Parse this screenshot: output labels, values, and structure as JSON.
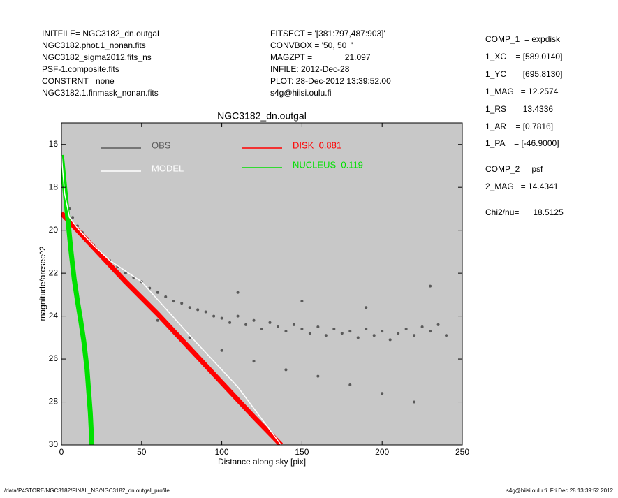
{
  "chart_data": {
    "type": "scatter",
    "title": "NGC3182_dn.outgal",
    "x_label": "Distance along sky [pix]",
    "y_label": "magnitude/arcsec^2",
    "xlim": [
      0,
      250
    ],
    "ylim": [
      30,
      15
    ],
    "xticks": [
      0,
      50,
      100,
      150,
      200,
      250
    ],
    "yticks": [
      16,
      18,
      20,
      22,
      24,
      26,
      28,
      30
    ],
    "grid": false,
    "background": "#c8c8c8",
    "header_left": [
      "INITFILE= NGC3182_dn.outgal",
      "NGC3182.phot.1_nonan.fits",
      "NGC3182_sigma2012.fits_ns",
      "PSF-1.composite.fits",
      "CONSTRNT= none",
      "NGC3182.1.finmask_nonan.fits"
    ],
    "header_center": [
      "FITSECT = '[381:797,487:903]'",
      "CONVBOX = '50, 50  '",
      "MAGZPT =              21.097",
      "INFILE: 2012-Dec-28",
      "PLOT: 28-Dec-2012 13:39:52.00",
      "s4g@hiisi.oulu.fi"
    ],
    "header_right": [
      "COMP_1  = expdisk",
      "1_XC    = [589.0140]",
      "1_YC    = [695.8130]",
      "1_MAG   = 12.2574",
      "1_RS    = 13.4336",
      "1_AR    = [0.7816]",
      "1_PA    = [-46.9000]",
      "COMP_2  = psf",
      "2_MAG   = 14.4341",
      "Chi2/nu=      18.5125"
    ],
    "footer_left": "/data/P4STORE/NGC3182/FINAL_NS/NGC3182_dn.outgal_profile",
    "footer_right": "s4g@hiisi.oulu.fi  Fri Dec 28 13:39:52 2012",
    "series": [
      {
        "name": "OBS",
        "color": "#5a5a5a",
        "style": "points",
        "x": [
          0,
          1,
          2,
          3,
          5,
          7,
          10,
          13,
          16,
          20,
          25,
          30,
          35,
          40,
          45,
          50,
          55,
          60,
          65,
          70,
          75,
          80,
          85,
          90,
          95,
          100,
          105,
          110,
          115,
          120,
          125,
          130,
          135,
          140,
          145,
          150,
          155,
          160,
          165,
          170,
          175,
          180,
          185,
          190,
          195,
          200,
          205,
          210,
          215,
          220,
          225,
          230,
          235,
          240,
          60,
          80,
          100,
          120,
          140,
          160,
          180,
          200,
          220,
          110,
          150,
          190,
          230
        ],
        "values": [
          16.6,
          17.3,
          17.9,
          18.4,
          19.0,
          19.4,
          19.8,
          20.1,
          20.4,
          20.7,
          21.1,
          21.4,
          21.7,
          22.0,
          22.2,
          22.4,
          22.7,
          22.9,
          23.1,
          23.3,
          23.4,
          23.6,
          23.7,
          23.8,
          24.0,
          24.1,
          24.3,
          24.0,
          24.4,
          24.2,
          24.6,
          24.3,
          24.5,
          24.7,
          24.4,
          24.6,
          24.8,
          24.5,
          24.9,
          24.6,
          24.8,
          24.7,
          25.0,
          24.6,
          24.9,
          24.7,
          25.1,
          24.8,
          24.6,
          24.9,
          24.5,
          24.7,
          24.4,
          24.9,
          24.2,
          25.0,
          25.6,
          26.1,
          26.5,
          26.8,
          27.2,
          27.6,
          28.0,
          22.9,
          23.3,
          23.6,
          22.6
        ]
      },
      {
        "name": "MODEL",
        "color": "#ffffff",
        "style": "line",
        "x": [
          0,
          2,
          5,
          10,
          20,
          30,
          50,
          80,
          110,
          137
        ],
        "values": [
          16.5,
          18.3,
          19.4,
          19.9,
          20.7,
          21.4,
          22.4,
          24.9,
          27.3,
          30
        ]
      },
      {
        "name": "DISK  0.881",
        "color": "#ff0000",
        "style": "band",
        "x": [
          0,
          20,
          40,
          60,
          80,
          100,
          120,
          137
        ],
        "values": [
          19.2,
          20.8,
          22.4,
          23.9,
          25.5,
          27.1,
          28.7,
          30
        ]
      },
      {
        "name": "NUCLEUS  0.119",
        "color": "#00e000",
        "style": "band",
        "x": [
          0,
          2,
          4,
          6,
          8,
          10,
          12,
          14,
          16,
          18,
          19
        ],
        "values": [
          16.5,
          18,
          19.5,
          21,
          22.3,
          23.3,
          24.2,
          25.2,
          26.5,
          28.5,
          30
        ]
      }
    ]
  }
}
